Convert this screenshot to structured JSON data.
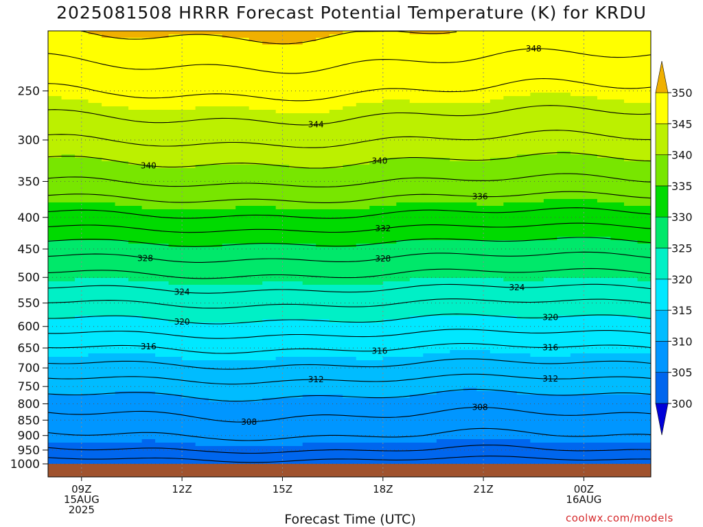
{
  "title": "2025081508 HRRR Forecast Potential Temperature (K) for KRDU",
  "xlabel": "Forecast Time (UTC)",
  "credit": "coolwx.com/models",
  "colors": {
    "ground": "#a0522d",
    "contour_line": "#000000",
    "grid": "#555555"
  },
  "chart_data": {
    "type": "heatmap",
    "title": "2025081508 HRRR Forecast Potential Temperature (K) for KRDU",
    "xlabel": "Forecast Time (UTC)",
    "ylabel": "",
    "x_ticks": [
      {
        "hour": 9,
        "lines": [
          "09Z",
          "15AUG",
          "2025"
        ]
      },
      {
        "hour": 12,
        "lines": [
          "12Z"
        ]
      },
      {
        "hour": 15,
        "lines": [
          "15Z"
        ]
      },
      {
        "hour": 18,
        "lines": [
          "18Z"
        ]
      },
      {
        "hour": 21,
        "lines": [
          "21Z"
        ]
      },
      {
        "hour": 24,
        "lines": [
          "00Z",
          "16AUG"
        ]
      }
    ],
    "xlim_hours": [
      8,
      26
    ],
    "y_scale": "log",
    "ylim_hpa": [
      1000,
      200
    ],
    "y_ticks": [
      250,
      300,
      350,
      400,
      450,
      500,
      550,
      600,
      650,
      700,
      750,
      800,
      850,
      900,
      950,
      1000
    ],
    "colorbar": {
      "levels": [
        300,
        305,
        310,
        315,
        320,
        325,
        330,
        335,
        340,
        345,
        350
      ],
      "labels": [
        "300",
        "305",
        "310",
        "315",
        "320",
        "325",
        "330",
        "335",
        "340",
        "345",
        "350"
      ],
      "colors": [
        "#0000d8",
        "#0066ee",
        "#0096ff",
        "#00bcff",
        "#00e8ff",
        "#00f0c6",
        "#00e86a",
        "#00da00",
        "#78e600",
        "#bcf000",
        "#ffff00",
        "#f0b000"
      ],
      "extend": "both"
    },
    "contour_interval_K": 2,
    "contour_labels": [
      {
        "value": 348,
        "hour": 22.5
      },
      {
        "value": 344,
        "hour": 16.0
      },
      {
        "value": 340,
        "hour": 11.0
      },
      {
        "value": 340,
        "hour": 17.9
      },
      {
        "value": 336,
        "hour": 20.9
      },
      {
        "value": 332,
        "hour": 18.0
      },
      {
        "value": 328,
        "hour": 10.9
      },
      {
        "value": 328,
        "hour": 18.0
      },
      {
        "value": 324,
        "hour": 12.0
      },
      {
        "value": 324,
        "hour": 22.0
      },
      {
        "value": 320,
        "hour": 12.0
      },
      {
        "value": 320,
        "hour": 23.0
      },
      {
        "value": 316,
        "hour": 11.0
      },
      {
        "value": 316,
        "hour": 17.9
      },
      {
        "value": 316,
        "hour": 23.0
      },
      {
        "value": 312,
        "hour": 16.0
      },
      {
        "value": 312,
        "hour": 23.0
      },
      {
        "value": 308,
        "hour": 14.0
      },
      {
        "value": 308,
        "hour": 20.9
      }
    ],
    "surface_pressure_hpa": 1000
  }
}
